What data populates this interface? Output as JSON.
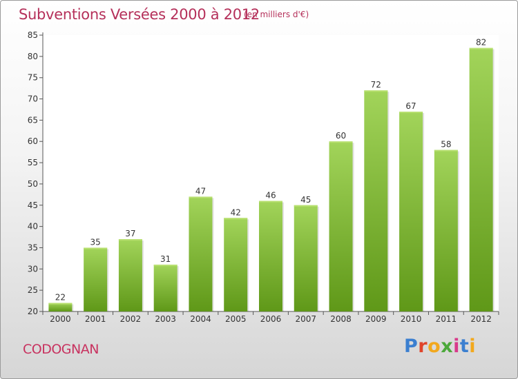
{
  "header": {
    "title": "Subventions Versées 2000 à 2012",
    "subtitle": "(en milliers d'€)"
  },
  "footer": {
    "commune": "CODOGNAN",
    "brand": "Proxiti",
    "brand_colors": [
      "#3b7fd0",
      "#e0442a",
      "#f2a81d",
      "#4ba83a",
      "#d83a8a",
      "#3b7fd0",
      "#f2a81d"
    ]
  },
  "colors": {
    "bar_top": "#a2d45a",
    "bar_bottom": "#5f9818",
    "axis": "#555555",
    "grid": "#e3e3e3",
    "title": "#b5305a"
  },
  "chart_data": {
    "type": "bar",
    "categories": [
      "2000",
      "2001",
      "2002",
      "2003",
      "2004",
      "2005",
      "2006",
      "2007",
      "2008",
      "2009",
      "2010",
      "2011",
      "2012"
    ],
    "values": [
      22,
      35,
      37,
      31,
      47,
      42,
      46,
      45,
      60,
      72,
      67,
      58,
      82
    ],
    "ylim": [
      20,
      85
    ],
    "yticks": [
      20,
      25,
      30,
      35,
      40,
      45,
      50,
      55,
      60,
      65,
      70,
      75,
      80,
      85
    ],
    "grid": false,
    "legend": "none"
  }
}
